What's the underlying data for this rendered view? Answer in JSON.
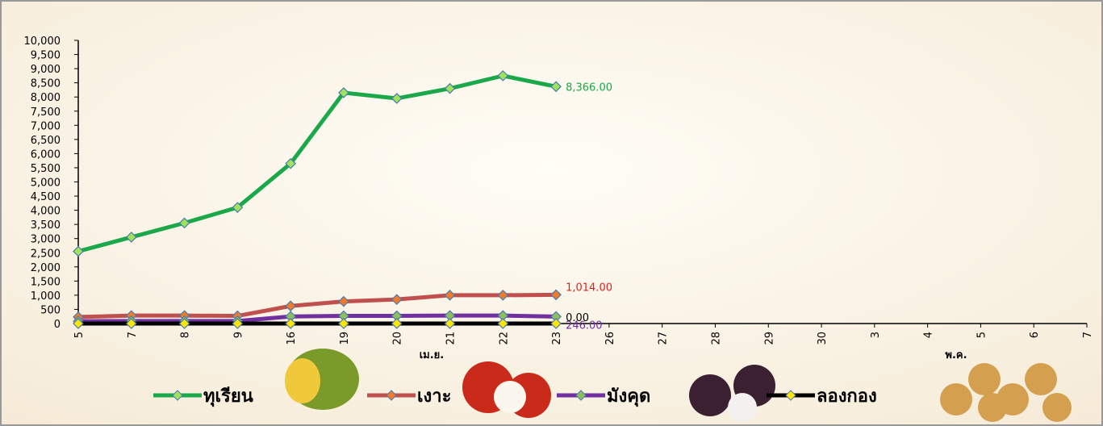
{
  "chart_data": {
    "type": "line",
    "categories": [
      "5",
      "7",
      "8",
      "9",
      "16",
      "19",
      "20",
      "21",
      "22",
      "23",
      "26",
      "27",
      "28",
      "29",
      "30",
      "3",
      "4",
      "5",
      "6",
      "7"
    ],
    "months": [
      "เม.ย.",
      "พ.ค."
    ],
    "ylim": [
      0,
      10000
    ],
    "yticks": [
      0,
      500,
      {
        "value": 1000,
        "label": "1,000"
      },
      {
        "value": 1500,
        "label": "1,500"
      },
      {
        "value": 2000,
        "label": "2,000"
      },
      {
        "value": 2500,
        "label": "2,500"
      },
      {
        "value": 3000,
        "label": "3,000"
      },
      {
        "value": 3500,
        "label": "3,500"
      },
      {
        "value": 4000,
        "label": "4,000"
      },
      {
        "value": 4500,
        "label": "4,500"
      },
      {
        "value": 5000,
        "label": "5,000"
      },
      {
        "value": 5500,
        "label": "5,500"
      },
      {
        "value": 6000,
        "label": "6,000"
      },
      {
        "value": 6500,
        "label": "6,500"
      },
      {
        "value": 7000,
        "label": "7,000"
      },
      {
        "value": 7500,
        "label": "7,500"
      },
      {
        "value": 8000,
        "label": "8,000"
      },
      {
        "value": 8500,
        "label": "8,500"
      },
      {
        "value": 9000,
        "label": "9,000"
      },
      {
        "value": 9500,
        "label": "9,500"
      },
      {
        "value": 10000,
        "label": "10,000"
      }
    ],
    "series": [
      {
        "name": "ทุเรียน",
        "color": "#1aa84a",
        "marker_color": "#9fe35a",
        "label_color": "#1aa84a",
        "values": [
          2550,
          3050,
          3550,
          4100,
          5650,
          8150,
          7950,
          8300,
          8750,
          8366,
          null,
          null,
          null,
          null,
          null,
          null,
          null,
          null,
          null,
          null
        ],
        "value_labels": [
          null,
          null,
          null,
          null,
          null,
          null,
          null,
          null,
          null,
          "8,366.00",
          null,
          null,
          null,
          null,
          null,
          null,
          null,
          null,
          null,
          null
        ]
      },
      {
        "name": "เงาะ",
        "color": "#c0504d",
        "marker_color": "#f07b2a",
        "label_color": "#e02020",
        "values": [
          230,
          280,
          280,
          270,
          620,
          780,
          850,
          1000,
          1000,
          1014,
          null,
          null,
          null,
          null,
          null,
          null,
          null,
          null,
          null,
          null
        ],
        "value_labels": [
          null,
          null,
          null,
          null,
          null,
          null,
          null,
          null,
          null,
          "1,014.00",
          null,
          null,
          null,
          null,
          null,
          null,
          null,
          null,
          null,
          null
        ]
      },
      {
        "name": "มังคุด",
        "color": "#7030a0",
        "marker_color": "#8fbf5a",
        "label_color": "#7030a0",
        "values": [
          80,
          90,
          90,
          90,
          250,
          270,
          270,
          280,
          280,
          246,
          null,
          null,
          null,
          null,
          null,
          null,
          null,
          null,
          null,
          null
        ],
        "value_labels": [
          null,
          null,
          null,
          null,
          null,
          null,
          null,
          null,
          null,
          "246.00",
          null,
          null,
          null,
          null,
          null,
          null,
          null,
          null,
          null,
          null
        ]
      },
      {
        "name": "ลองกอง",
        "color": "#000000",
        "marker_color": "#ffe600",
        "label_color": "#000000",
        "values": [
          0,
          0,
          0,
          0,
          0,
          0,
          0,
          0,
          0,
          0,
          null,
          null,
          null,
          null,
          null,
          null,
          null,
          null,
          null,
          null
        ],
        "value_labels": [
          null,
          null,
          null,
          null,
          null,
          null,
          null,
          null,
          null,
          "0.00",
          null,
          null,
          null,
          null,
          null,
          null,
          null,
          null,
          null,
          null
        ]
      }
    ]
  }
}
